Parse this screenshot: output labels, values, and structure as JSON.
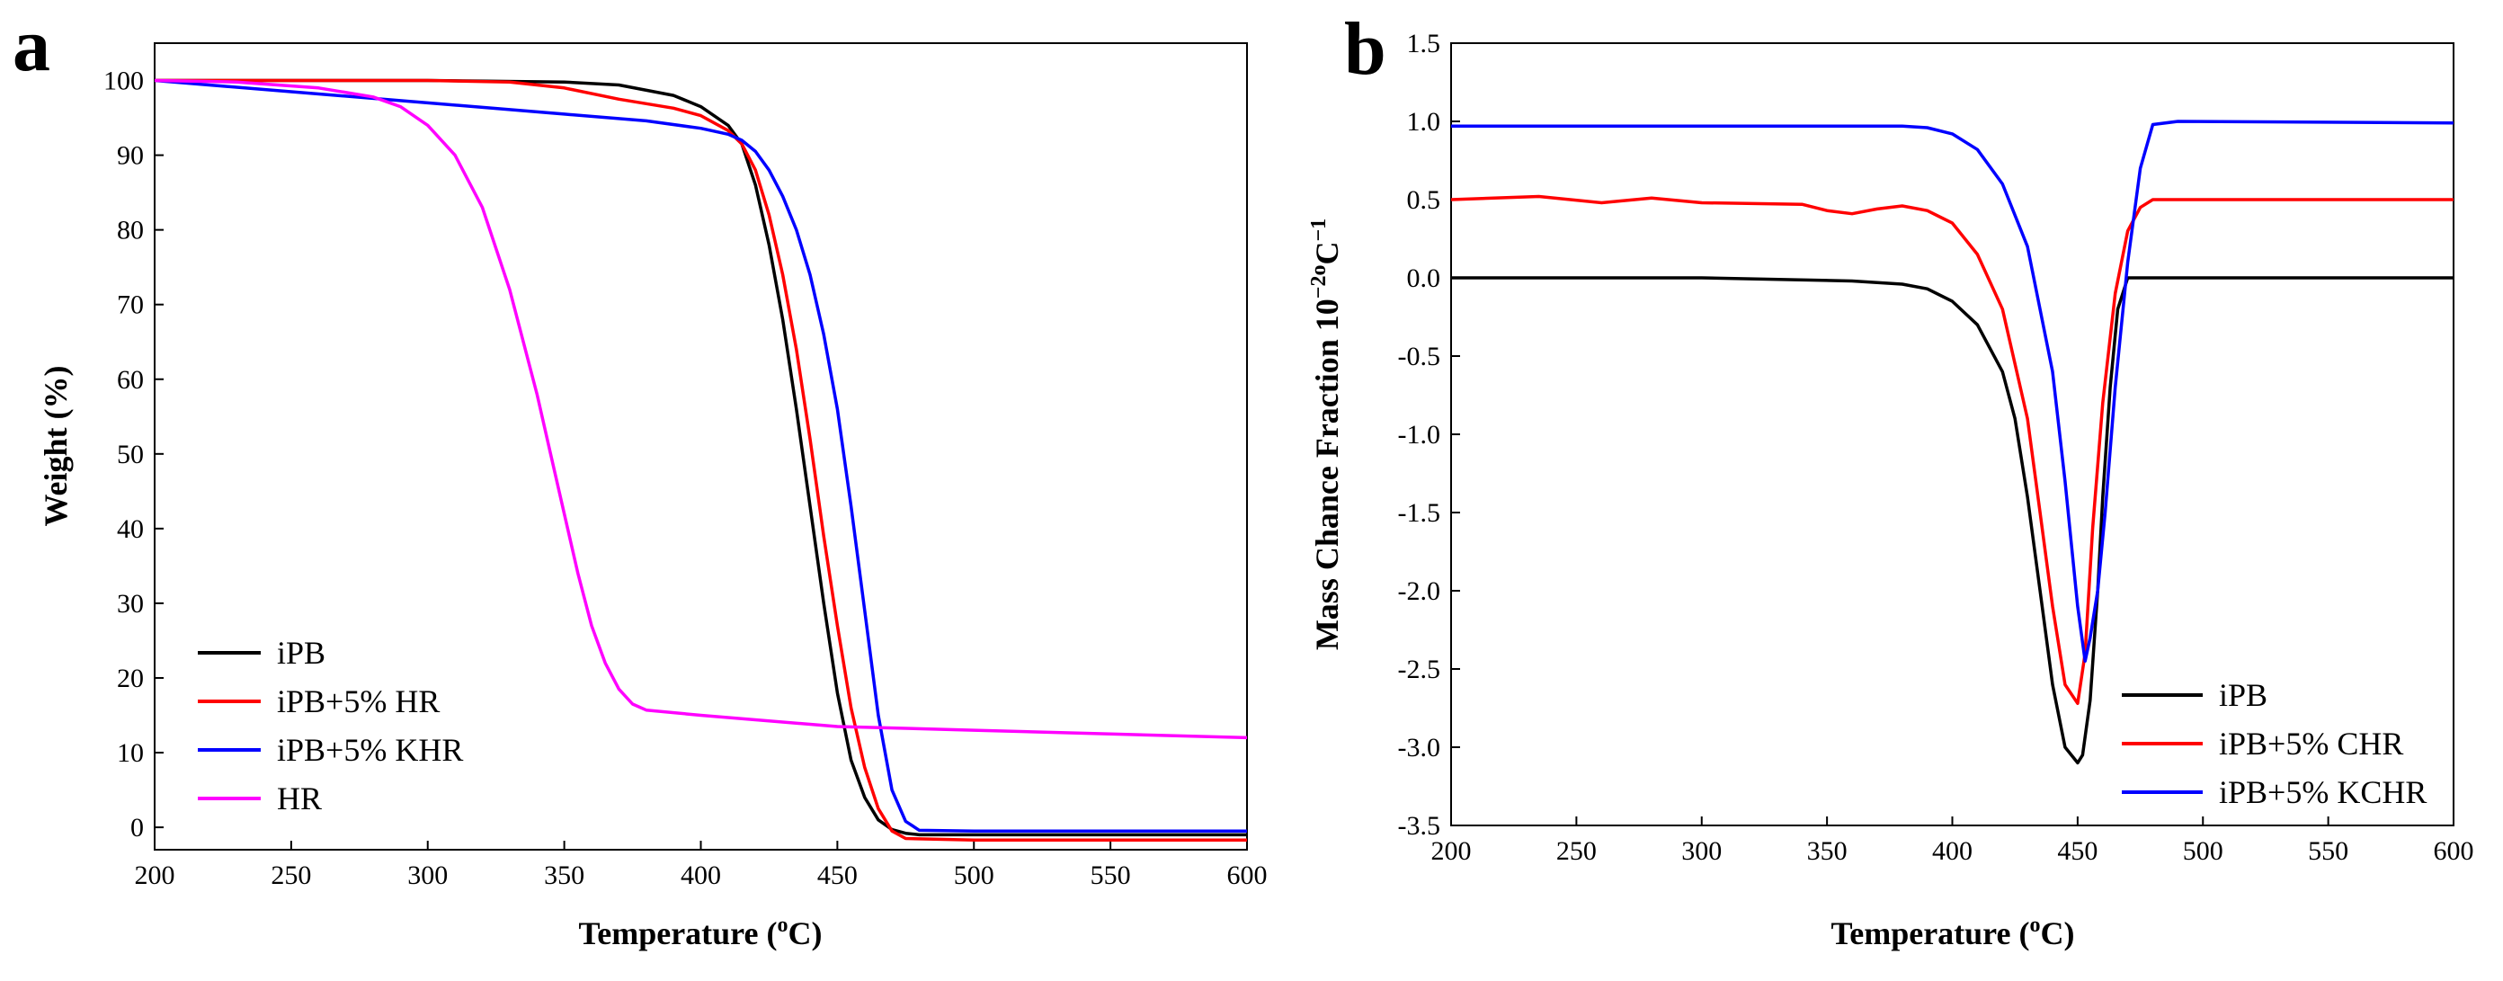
{
  "chart_data": [
    {
      "panel_label": "a",
      "type": "line",
      "xlabel_main": "Temperature (",
      "xlabel_sup": "o",
      "xlabel_tail": "C)",
      "ylabel": "Weight (%)",
      "xlim": [
        200,
        600
      ],
      "ylim": [
        -3,
        105
      ],
      "xticks": [
        200,
        250,
        300,
        350,
        400,
        450,
        500,
        550,
        600
      ],
      "yticks": [
        0,
        10,
        20,
        30,
        40,
        50,
        60,
        70,
        80,
        90,
        100
      ],
      "legend_position": "bottom-left",
      "series": [
        {
          "name": "iPB",
          "color": "#000000",
          "x": [
            200,
            250,
            300,
            350,
            370,
            390,
            400,
            410,
            415,
            420,
            425,
            430,
            435,
            440,
            445,
            450,
            455,
            460,
            465,
            470,
            475,
            480,
            500,
            600
          ],
          "y": [
            100,
            100,
            100,
            99.8,
            99.4,
            98.0,
            96.5,
            94.0,
            91.5,
            86.0,
            78.0,
            68.0,
            56.0,
            43.0,
            30.0,
            18.0,
            9.0,
            4.0,
            1.0,
            -0.3,
            -0.8,
            -1.0,
            -1.0,
            -1.0
          ]
        },
        {
          "name": "iPB+5% HR",
          "color": "#ff0000",
          "x": [
            200,
            250,
            300,
            330,
            350,
            370,
            390,
            400,
            410,
            415,
            420,
            425,
            430,
            435,
            440,
            445,
            450,
            455,
            460,
            465,
            470,
            475,
            500,
            600
          ],
          "y": [
            100,
            100,
            100,
            99.8,
            99.0,
            97.5,
            96.3,
            95.3,
            93.3,
            91.5,
            88.0,
            82.0,
            74.0,
            64.0,
            52.0,
            39.0,
            27.0,
            16.0,
            8.0,
            2.5,
            -0.5,
            -1.5,
            -1.7,
            -1.7
          ]
        },
        {
          "name": "iPB+5% KHR",
          "color": "#0000ff",
          "x": [
            200,
            250,
            300,
            350,
            380,
            400,
            410,
            415,
            420,
            425,
            430,
            435,
            440,
            445,
            450,
            455,
            460,
            465,
            470,
            475,
            480,
            500,
            600
          ],
          "y": [
            100,
            98.5,
            97.0,
            95.5,
            94.6,
            93.6,
            92.8,
            92.0,
            90.5,
            88.0,
            84.5,
            80.0,
            74.0,
            66.0,
            56.0,
            43.0,
            29.0,
            15.0,
            5.0,
            0.8,
            -0.4,
            -0.5,
            -0.5
          ]
        },
        {
          "name": "HR",
          "color": "#ff00ff",
          "x": [
            200,
            230,
            260,
            280,
            290,
            300,
            310,
            320,
            330,
            340,
            345,
            350,
            355,
            360,
            365,
            370,
            375,
            380,
            400,
            450,
            500,
            550,
            600
          ],
          "y": [
            100,
            99.8,
            99.0,
            97.8,
            96.5,
            94.0,
            90.0,
            83.0,
            72.0,
            58.0,
            50.0,
            42.0,
            34.0,
            27.0,
            22.0,
            18.5,
            16.5,
            15.7,
            15.0,
            13.5,
            13.0,
            12.5,
            12.0
          ]
        }
      ]
    },
    {
      "panel_label": "b",
      "type": "line",
      "xlabel_main": "Temperature (",
      "xlabel_sup": "o",
      "xlabel_tail": "C)",
      "ylabel_main": "Mass Chance Fraction 10",
      "ylabel_sup": "−2",
      "ylabel_mid": "o",
      "ylabel_tail": "C",
      "ylabel_sup2": "−1",
      "xlim": [
        200,
        600
      ],
      "ylim": [
        -3.5,
        1.5
      ],
      "xticks": [
        200,
        250,
        300,
        350,
        400,
        450,
        500,
        550,
        600
      ],
      "yticks": [
        "1.5",
        "1.0",
        "0.5",
        "0.0",
        "-0.5",
        "-1.0",
        "-1.5",
        "-2.0",
        "-2.5",
        "-3.0",
        "-3.5"
      ],
      "legend_position": "bottom-right",
      "series": [
        {
          "name": "iPB",
          "color": "#000000",
          "x": [
            200,
            300,
            360,
            380,
            390,
            400,
            410,
            420,
            425,
            430,
            435,
            440,
            445,
            450,
            452,
            455,
            458,
            460,
            463,
            466,
            470,
            480,
            600
          ],
          "y": [
            0,
            0,
            -0.02,
            -0.04,
            -0.07,
            -0.15,
            -0.3,
            -0.6,
            -0.9,
            -1.4,
            -2.0,
            -2.6,
            -3.0,
            -3.1,
            -3.05,
            -2.7,
            -2.0,
            -1.4,
            -0.7,
            -0.2,
            0.0,
            0.0,
            0.0
          ]
        },
        {
          "name": "iPB+5% CHR",
          "color": "#ff0000",
          "x": [
            200,
            235,
            260,
            280,
            300,
            340,
            350,
            360,
            370,
            380,
            390,
            400,
            410,
            420,
            430,
            435,
            440,
            445,
            450,
            453,
            456,
            460,
            465,
            470,
            475,
            480,
            500,
            600
          ],
          "y": [
            0.5,
            0.52,
            0.48,
            0.51,
            0.48,
            0.47,
            0.43,
            0.41,
            0.44,
            0.46,
            0.43,
            0.35,
            0.15,
            -0.2,
            -0.9,
            -1.5,
            -2.1,
            -2.6,
            -2.72,
            -2.4,
            -1.6,
            -0.8,
            -0.1,
            0.3,
            0.45,
            0.5,
            0.5,
            0.5
          ]
        },
        {
          "name": "iPB+5% KCHR",
          "color": "#0000ff",
          "x": [
            200,
            300,
            380,
            390,
            400,
            410,
            420,
            430,
            440,
            445,
            450,
            453,
            455,
            458,
            461,
            465,
            470,
            475,
            480,
            490,
            600
          ],
          "y": [
            0.97,
            0.97,
            0.97,
            0.96,
            0.92,
            0.82,
            0.6,
            0.2,
            -0.6,
            -1.3,
            -2.1,
            -2.45,
            -2.3,
            -2.0,
            -1.5,
            -0.7,
            0.1,
            0.7,
            0.98,
            1.0,
            0.99
          ]
        }
      ]
    }
  ]
}
